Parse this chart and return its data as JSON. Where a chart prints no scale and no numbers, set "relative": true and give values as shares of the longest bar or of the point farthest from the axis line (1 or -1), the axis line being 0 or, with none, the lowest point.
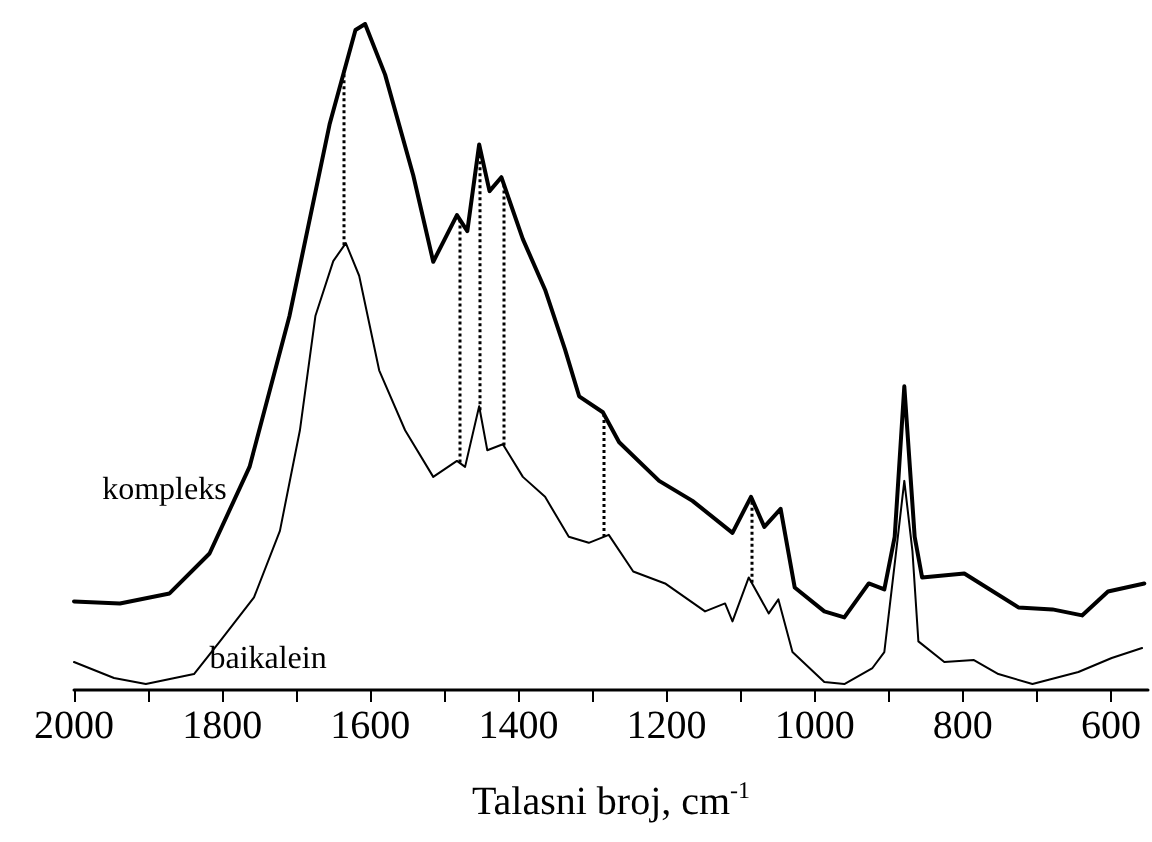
{
  "chart_data": {
    "type": "line",
    "relative": true,
    "xlabel": "Talasni broj, cm$^{-1}$",
    "xlim": [
      2000,
      550
    ],
    "xticks": [
      2000,
      {
        "value": 1900,
        "label": null
      },
      1800,
      {
        "value": 1700,
        "label": null
      },
      1600,
      {
        "value": 1500,
        "label": null
      },
      1400,
      {
        "value": 1300,
        "label": null
      },
      1200,
      {
        "value": 1100,
        "label": null
      },
      1000,
      {
        "value": 900,
        "label": null
      },
      800,
      {
        "value": 700,
        "label": null
      },
      600
    ],
    "legend": false,
    "grid": false,
    "marker": "none",
    "line_style": "solid",
    "series": [
      {
        "name": "kompleks",
        "color": "#000000",
        "x": [
          2000,
          1938,
          1871,
          1817,
          1763,
          1709,
          1655,
          1620,
          1607,
          1580,
          1542,
          1515,
          1483,
          1469,
          1453,
          1439,
          1423,
          1394,
          1364,
          1337,
          1318,
          1286,
          1264,
          1210,
          1165,
          1111,
          1086,
          1068,
          1046,
          1027,
          987,
          960,
          927,
          906,
          892,
          879,
          865,
          855,
          798,
          725,
          679,
          639,
          604,
          555
        ],
        "values": [
          0.133,
          0.13,
          0.145,
          0.205,
          0.335,
          0.562,
          0.849,
          0.991,
          1.0,
          0.924,
          0.773,
          0.643,
          0.713,
          0.689,
          0.819,
          0.749,
          0.77,
          0.677,
          0.601,
          0.511,
          0.441,
          0.417,
          0.372,
          0.314,
          0.284,
          0.236,
          0.29,
          0.245,
          0.272,
          0.154,
          0.118,
          0.109,
          0.16,
          0.151,
          0.23,
          0.456,
          0.23,
          0.169,
          0.175,
          0.124,
          0.121,
          0.112,
          0.148,
          0.16
        ]
      },
      {
        "name": "baikalein",
        "color": "#000000",
        "x": [
          2000,
          1946,
          1903,
          1838,
          1803,
          1757,
          1722,
          1695,
          1674,
          1650,
          1633,
          1615,
          1588,
          1553,
          1515,
          1483,
          1472,
          1453,
          1442,
          1421,
          1394,
          1364,
          1332,
          1305,
          1278,
          1245,
          1202,
          1148,
          1121,
          1111,
          1089,
          1062,
          1049,
          1030,
          987,
          960,
          922,
          906,
          890,
          879,
          868,
          860,
          825,
          785,
          752,
          706,
          644,
          599,
          558
        ],
        "values": [
          0.042,
          0.018,
          0.009,
          0.024,
          0.073,
          0.139,
          0.239,
          0.39,
          0.562,
          0.644,
          0.671,
          0.622,
          0.48,
          0.39,
          0.32,
          0.344,
          0.335,
          0.426,
          0.36,
          0.369,
          0.32,
          0.29,
          0.23,
          0.221,
          0.233,
          0.178,
          0.16,
          0.118,
          0.13,
          0.103,
          0.169,
          0.115,
          0.136,
          0.057,
          0.012,
          0.009,
          0.033,
          0.057,
          0.208,
          0.314,
          0.208,
          0.073,
          0.042,
          0.045,
          0.024,
          0.009,
          0.027,
          0.048,
          0.063
        ]
      }
    ],
    "ref_lines": [
      {
        "axis": "x",
        "value": 1635,
        "line_style": "dotted"
      },
      {
        "axis": "x",
        "value": 1480,
        "line_style": "dotted"
      },
      {
        "axis": "x",
        "value": 1452,
        "line_style": "dotted"
      },
      {
        "axis": "x",
        "value": 1420,
        "line_style": "dotted"
      },
      {
        "axis": "x",
        "value": 1285,
        "line_style": "dotted"
      },
      {
        "axis": "x",
        "value": 1085,
        "line_style": "dotted"
      }
    ]
  }
}
